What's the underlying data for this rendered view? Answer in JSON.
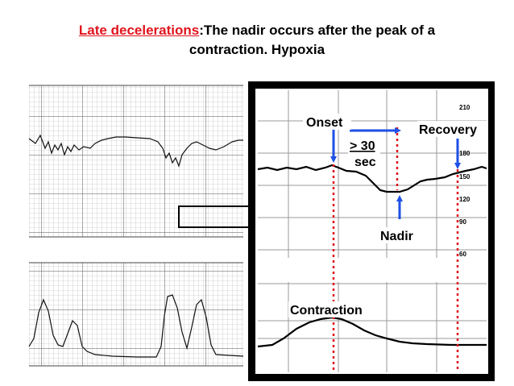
{
  "slide": {
    "title_term": "Late decelerations",
    "title_rest": ":The nadir occurs after the peak of a",
    "title_line2": "contraction. Hypoxia"
  },
  "zoom": {
    "onset": "Onset",
    "interval_line1": "> 30",
    "interval_line2": "sec",
    "recovery": "Recovery",
    "nadir": "Nadir",
    "contraction": "Contraction",
    "scale_labels": [
      "210",
      "180",
      "150",
      "120",
      "90",
      "60"
    ]
  },
  "colors": {
    "accent": "#e0141c",
    "arrow": "#1e50e6",
    "grid": "#9a9a9a",
    "trace": "#000000"
  }
}
